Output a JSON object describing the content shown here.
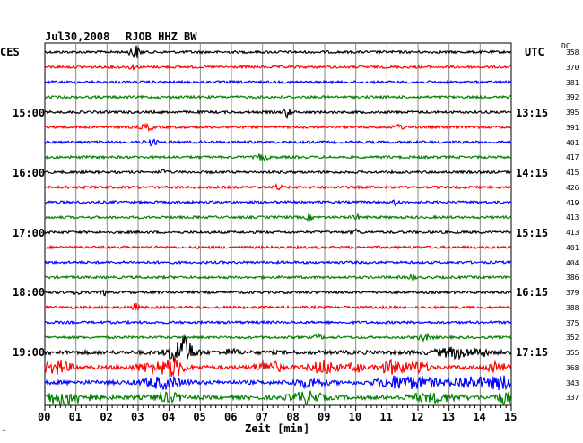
{
  "header": {
    "date": "Jul30,2008",
    "station": "RJOB HHZ BW",
    "left_tz": "CES",
    "right_tz": "UTC",
    "dc_label": "DC"
  },
  "left_times": [
    "15:00",
    "16:00",
    "17:00",
    "18:00",
    "19:00"
  ],
  "right_times": [
    "13:15",
    "14:15",
    "15:15",
    "16:15",
    "17:15"
  ],
  "dc_values": [
    "358",
    "370",
    "381",
    "392",
    "395",
    "391",
    "401",
    "417",
    "415",
    "426",
    "419",
    "413",
    "413",
    "401",
    "404",
    "386",
    "379",
    "388",
    "375",
    "352",
    "355",
    "368",
    "343",
    "337"
  ],
  "x_ticks": [
    "00",
    "01",
    "02",
    "03",
    "04",
    "05",
    "06",
    "07",
    "08",
    "09",
    "10",
    "11",
    "12",
    "13",
    "14",
    "15"
  ],
  "x_label": "Zeit [min]",
  "trace_colors": [
    "#000000",
    "#ff0000",
    "#0000ff",
    "#008000"
  ],
  "corner_mark": "*"
}
